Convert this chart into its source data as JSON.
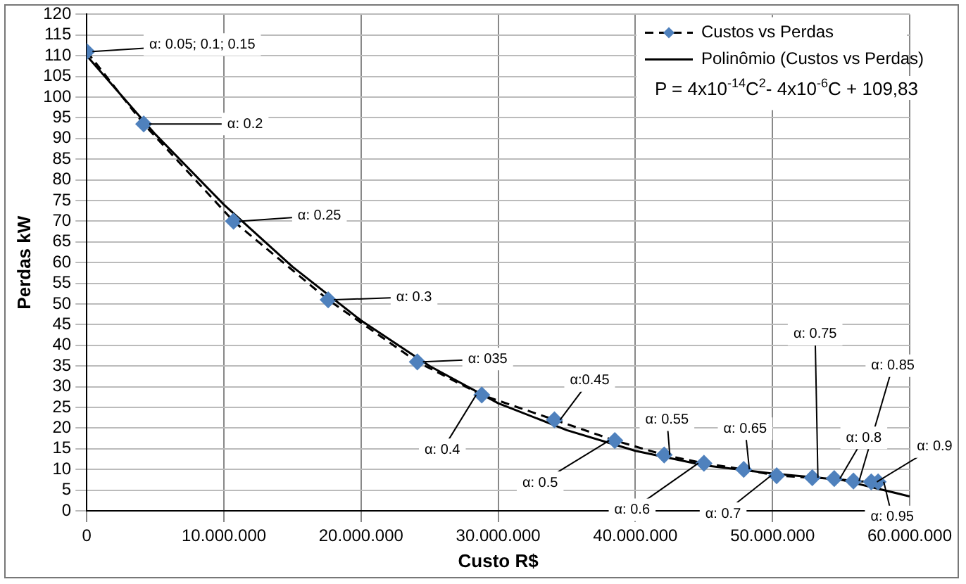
{
  "chart_data": {
    "type": "scatter",
    "xlabel": "Custo R$",
    "ylabel": "Perdas kW",
    "xlim": [
      0,
      60000000
    ],
    "xticks": [
      0,
      {
        "value": 10000000,
        "label": "10.000.000"
      },
      {
        "value": 20000000,
        "label": "20.000.000"
      },
      {
        "value": 30000000,
        "label": "30.000.000"
      },
      {
        "value": 40000000,
        "label": "40.000.000"
      },
      {
        "value": 50000000,
        "label": "50.000.000"
      },
      {
        "value": 60000000,
        "label": "60.000.000"
      }
    ],
    "ylim": [
      0,
      120
    ],
    "yticks": [
      0,
      5,
      10,
      15,
      20,
      25,
      30,
      35,
      40,
      45,
      50,
      55,
      60,
      65,
      70,
      75,
      80,
      85,
      90,
      95,
      100,
      105,
      110,
      115,
      120
    ],
    "grid": true,
    "legend": "top right",
    "series": [
      {
        "name": "Custos vs Perdas",
        "type": "line",
        "color": "#4f81bd",
        "marker": "diamond",
        "line_style": "dashed",
        "x": [
          0,
          4150000,
          10700000,
          17600000,
          24100000,
          28800000,
          34100000,
          38500000,
          42100000,
          45000000,
          47900000,
          50300000,
          52900000,
          54500000,
          55900000,
          57200000,
          57700000
        ],
        "values": [
          111,
          93.5,
          70,
          51,
          36,
          28,
          22,
          17,
          13.5,
          11.5,
          10,
          8.5,
          8,
          7.8,
          7.2,
          7,
          7
        ]
      },
      {
        "name": "Polinômio (Custos vs Perdas)",
        "type": "line",
        "color": "#000000",
        "marker": "none",
        "line_style": "solid",
        "x": [
          0,
          5000000,
          10000000,
          15000000,
          20000000,
          25000000,
          30000000,
          35000000,
          40000000,
          45000000,
          50000000,
          55000000,
          60000000
        ],
        "values": [
          110,
          91,
          74,
          59,
          46,
          35,
          26,
          19.5,
          14.5,
          11,
          9,
          7.5,
          3.5
        ]
      }
    ],
    "annotations": [
      "P = 4x10$^{-14}$C$^{2}$- 4x10$^{-6}$C + 109,83",
      {
        "text": "α: 0.05; 0.1; 0.15",
        "x": 0,
        "y": 111
      },
      {
        "text": "α: 0.2",
        "x": 4150000,
        "y": 93.5
      },
      {
        "text": "α: 0.25",
        "x": 10700000,
        "y": 70
      },
      {
        "text": "α: 0.3",
        "x": 17600000,
        "y": 51
      },
      {
        "text": "α: 035",
        "x": 24100000,
        "y": 36
      },
      {
        "text": "α: 0.4",
        "x": 28800000,
        "y": 28
      },
      {
        "text": "α:0.45",
        "x": 34100000,
        "y": 22
      },
      {
        "text": "α: 0.5",
        "x": 38500000,
        "y": 17
      },
      {
        "text": "α: 0.55",
        "x": 42100000,
        "y": 13.5
      },
      {
        "text": "α: 0.6",
        "x": 45000000,
        "y": 11.5
      },
      {
        "text": "α: 0.65",
        "x": 47900000,
        "y": 10
      },
      {
        "text": "α: 0.7",
        "x": 50300000,
        "y": 8.5
      },
      {
        "text": "α: 0.75",
        "x": 52900000,
        "y": 8
      },
      {
        "text": "α: 0.8",
        "x": 54500000,
        "y": 7.8
      },
      {
        "text": "α: 0.85",
        "x": 55900000,
        "y": 7.2
      },
      {
        "text": "α: 0.9",
        "x": 57200000,
        "y": 7
      },
      {
        "text": "α: 0.95",
        "x": 57700000,
        "y": 7
      }
    ]
  }
}
